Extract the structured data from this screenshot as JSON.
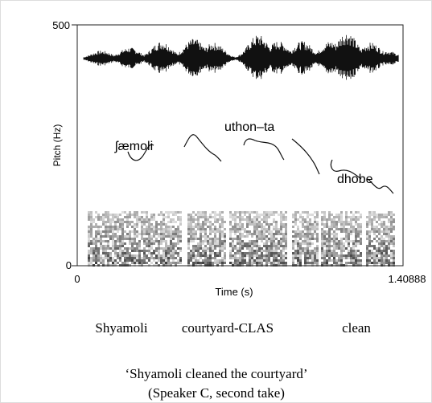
{
  "figure": {
    "axis": {
      "y_label": "Pitch (Hz)",
      "y_top": "500",
      "y_bottom": "0",
      "x_label": "Time (s)",
      "x_left": "0",
      "x_right": "1.40888"
    },
    "annotations": [
      "ʃæmoli",
      "uthon–ta",
      "dhobe"
    ],
    "gloss": [
      "Shyamoli",
      "courtyard-CLAS",
      "clean"
    ],
    "caption": [
      "‘Shyamoli cleaned the courtyard’",
      "(Speaker C, second take)"
    ]
  }
}
